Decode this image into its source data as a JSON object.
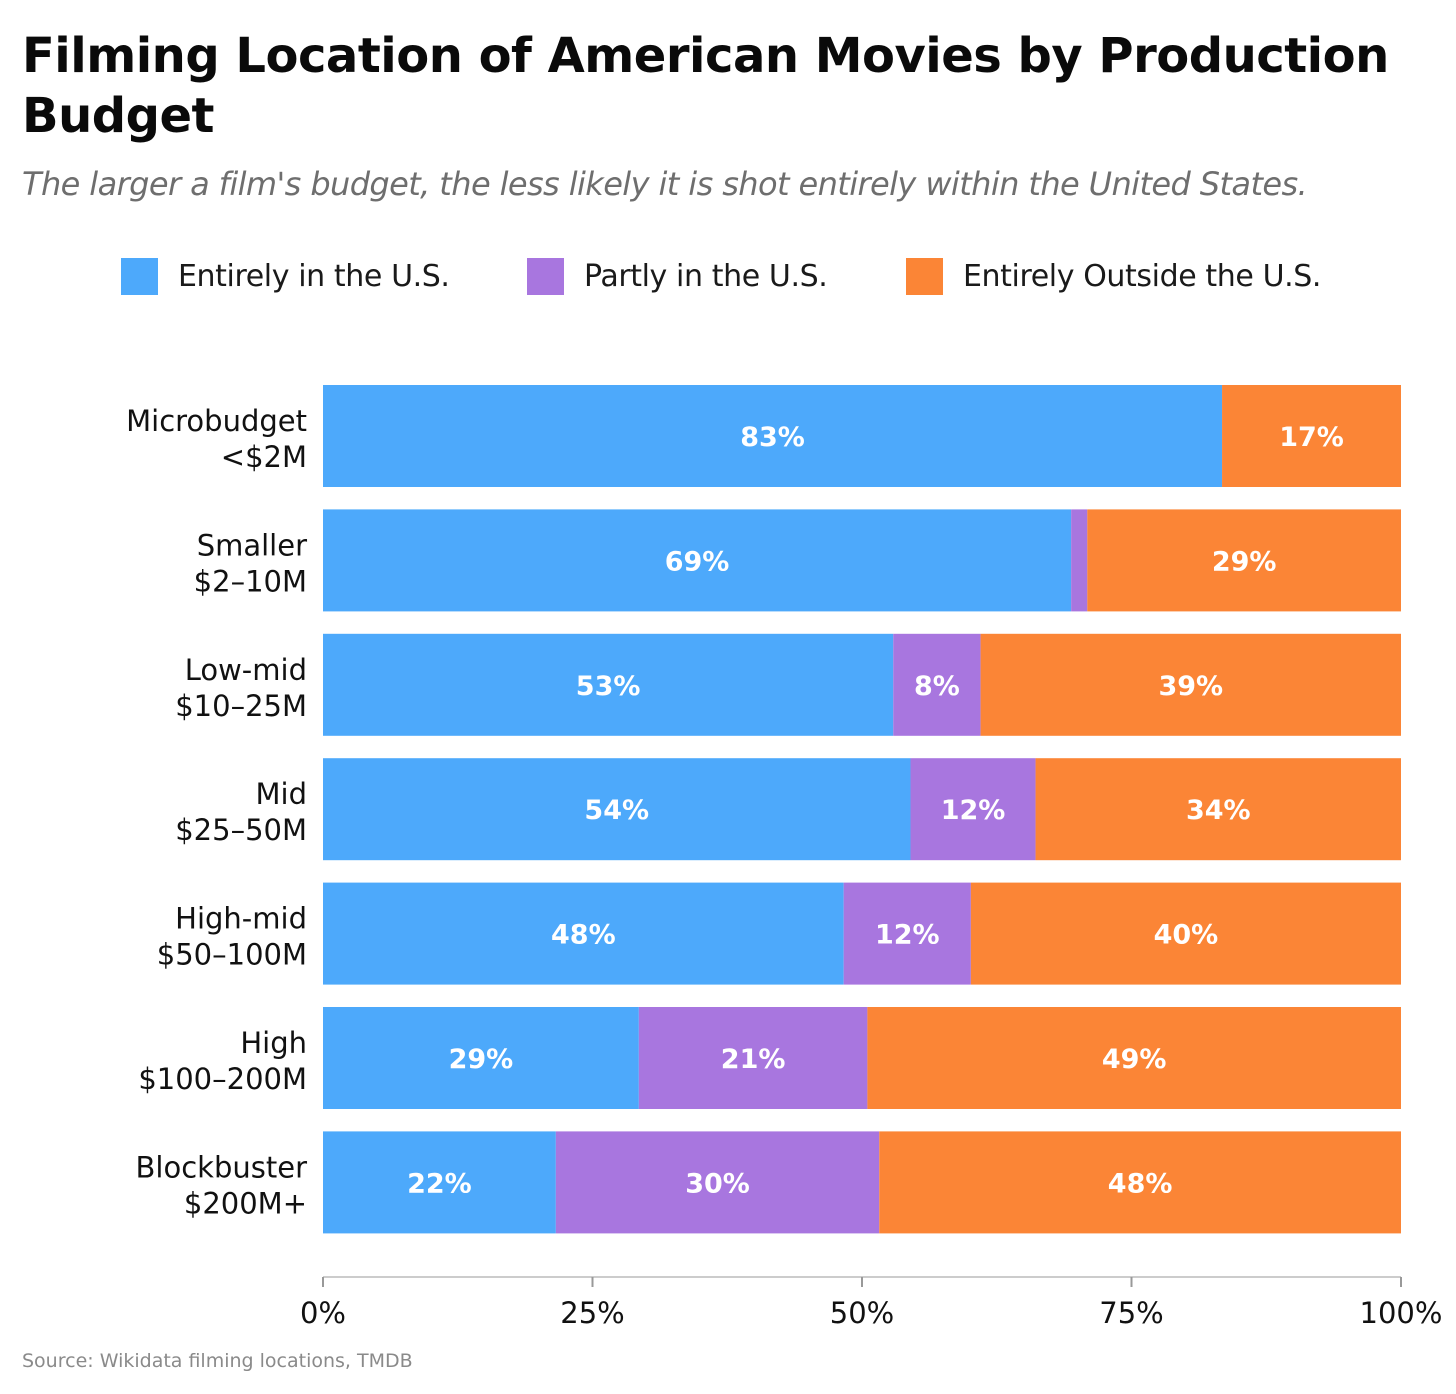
{
  "title": "Filming Location of American Movies by Production Budget",
  "subtitle": "The larger a film's budget, the less likely it is shot entirely within the United States.",
  "source": "Source: Wikidata filming locations, TMDB",
  "colors": {
    "entirely_us": "#4DA9FB",
    "partly_us": "#A876DF",
    "outside_us": "#FB8536",
    "axis": "#cccccc",
    "bar_label": "#ffffff"
  },
  "legend": [
    {
      "label": "Entirely in the U.S.",
      "color": "#4DA9FB"
    },
    {
      "label": "Partly in the U.S.",
      "color": "#A876DF"
    },
    {
      "label": "Entirely Outside the U.S.",
      "color": "#FB8536"
    }
  ],
  "chart_data": {
    "type": "bar",
    "orientation": "horizontal",
    "stacked": true,
    "categories": [
      [
        "Microbudget",
        "<$2M"
      ],
      [
        "Smaller",
        "$2–10M"
      ],
      [
        "Low-mid",
        "$10–25M"
      ],
      [
        "Mid",
        "$25–50M"
      ],
      [
        "High-mid",
        "$50–100M"
      ],
      [
        "High",
        "$100–200M"
      ],
      [
        "Blockbuster",
        "$200M+"
      ]
    ],
    "series": [
      {
        "name": "Entirely in the U.S.",
        "color": "#4DA9FB",
        "values": [
          83.4,
          69.4,
          52.9,
          54.5,
          48.3,
          29.3,
          21.6
        ],
        "labels": [
          "83%",
          "69%",
          "53%",
          "54%",
          "48%",
          "29%",
          "22%"
        ]
      },
      {
        "name": "Partly in the U.S.",
        "color": "#A876DF",
        "values": [
          0,
          1.5,
          8.1,
          11.6,
          11.8,
          21.2,
          30.0
        ],
        "labels": [
          "",
          "",
          "8%",
          "12%",
          "12%",
          "21%",
          "30%"
        ]
      },
      {
        "name": "Entirely Outside the U.S.",
        "color": "#FB8536",
        "values": [
          16.6,
          29.1,
          39.0,
          33.9,
          39.9,
          49.5,
          48.4
        ],
        "labels": [
          "17%",
          "29%",
          "39%",
          "34%",
          "40%",
          "49%",
          "48%"
        ]
      }
    ],
    "xlim": [
      0,
      100
    ],
    "xticks": [
      0,
      25,
      50,
      75,
      100
    ],
    "xtick_labels": [
      "0%",
      "25%",
      "50%",
      "75%",
      "100%"
    ],
    "xlabel": "",
    "ylabel": "",
    "grid": false,
    "legend_position": "top"
  }
}
